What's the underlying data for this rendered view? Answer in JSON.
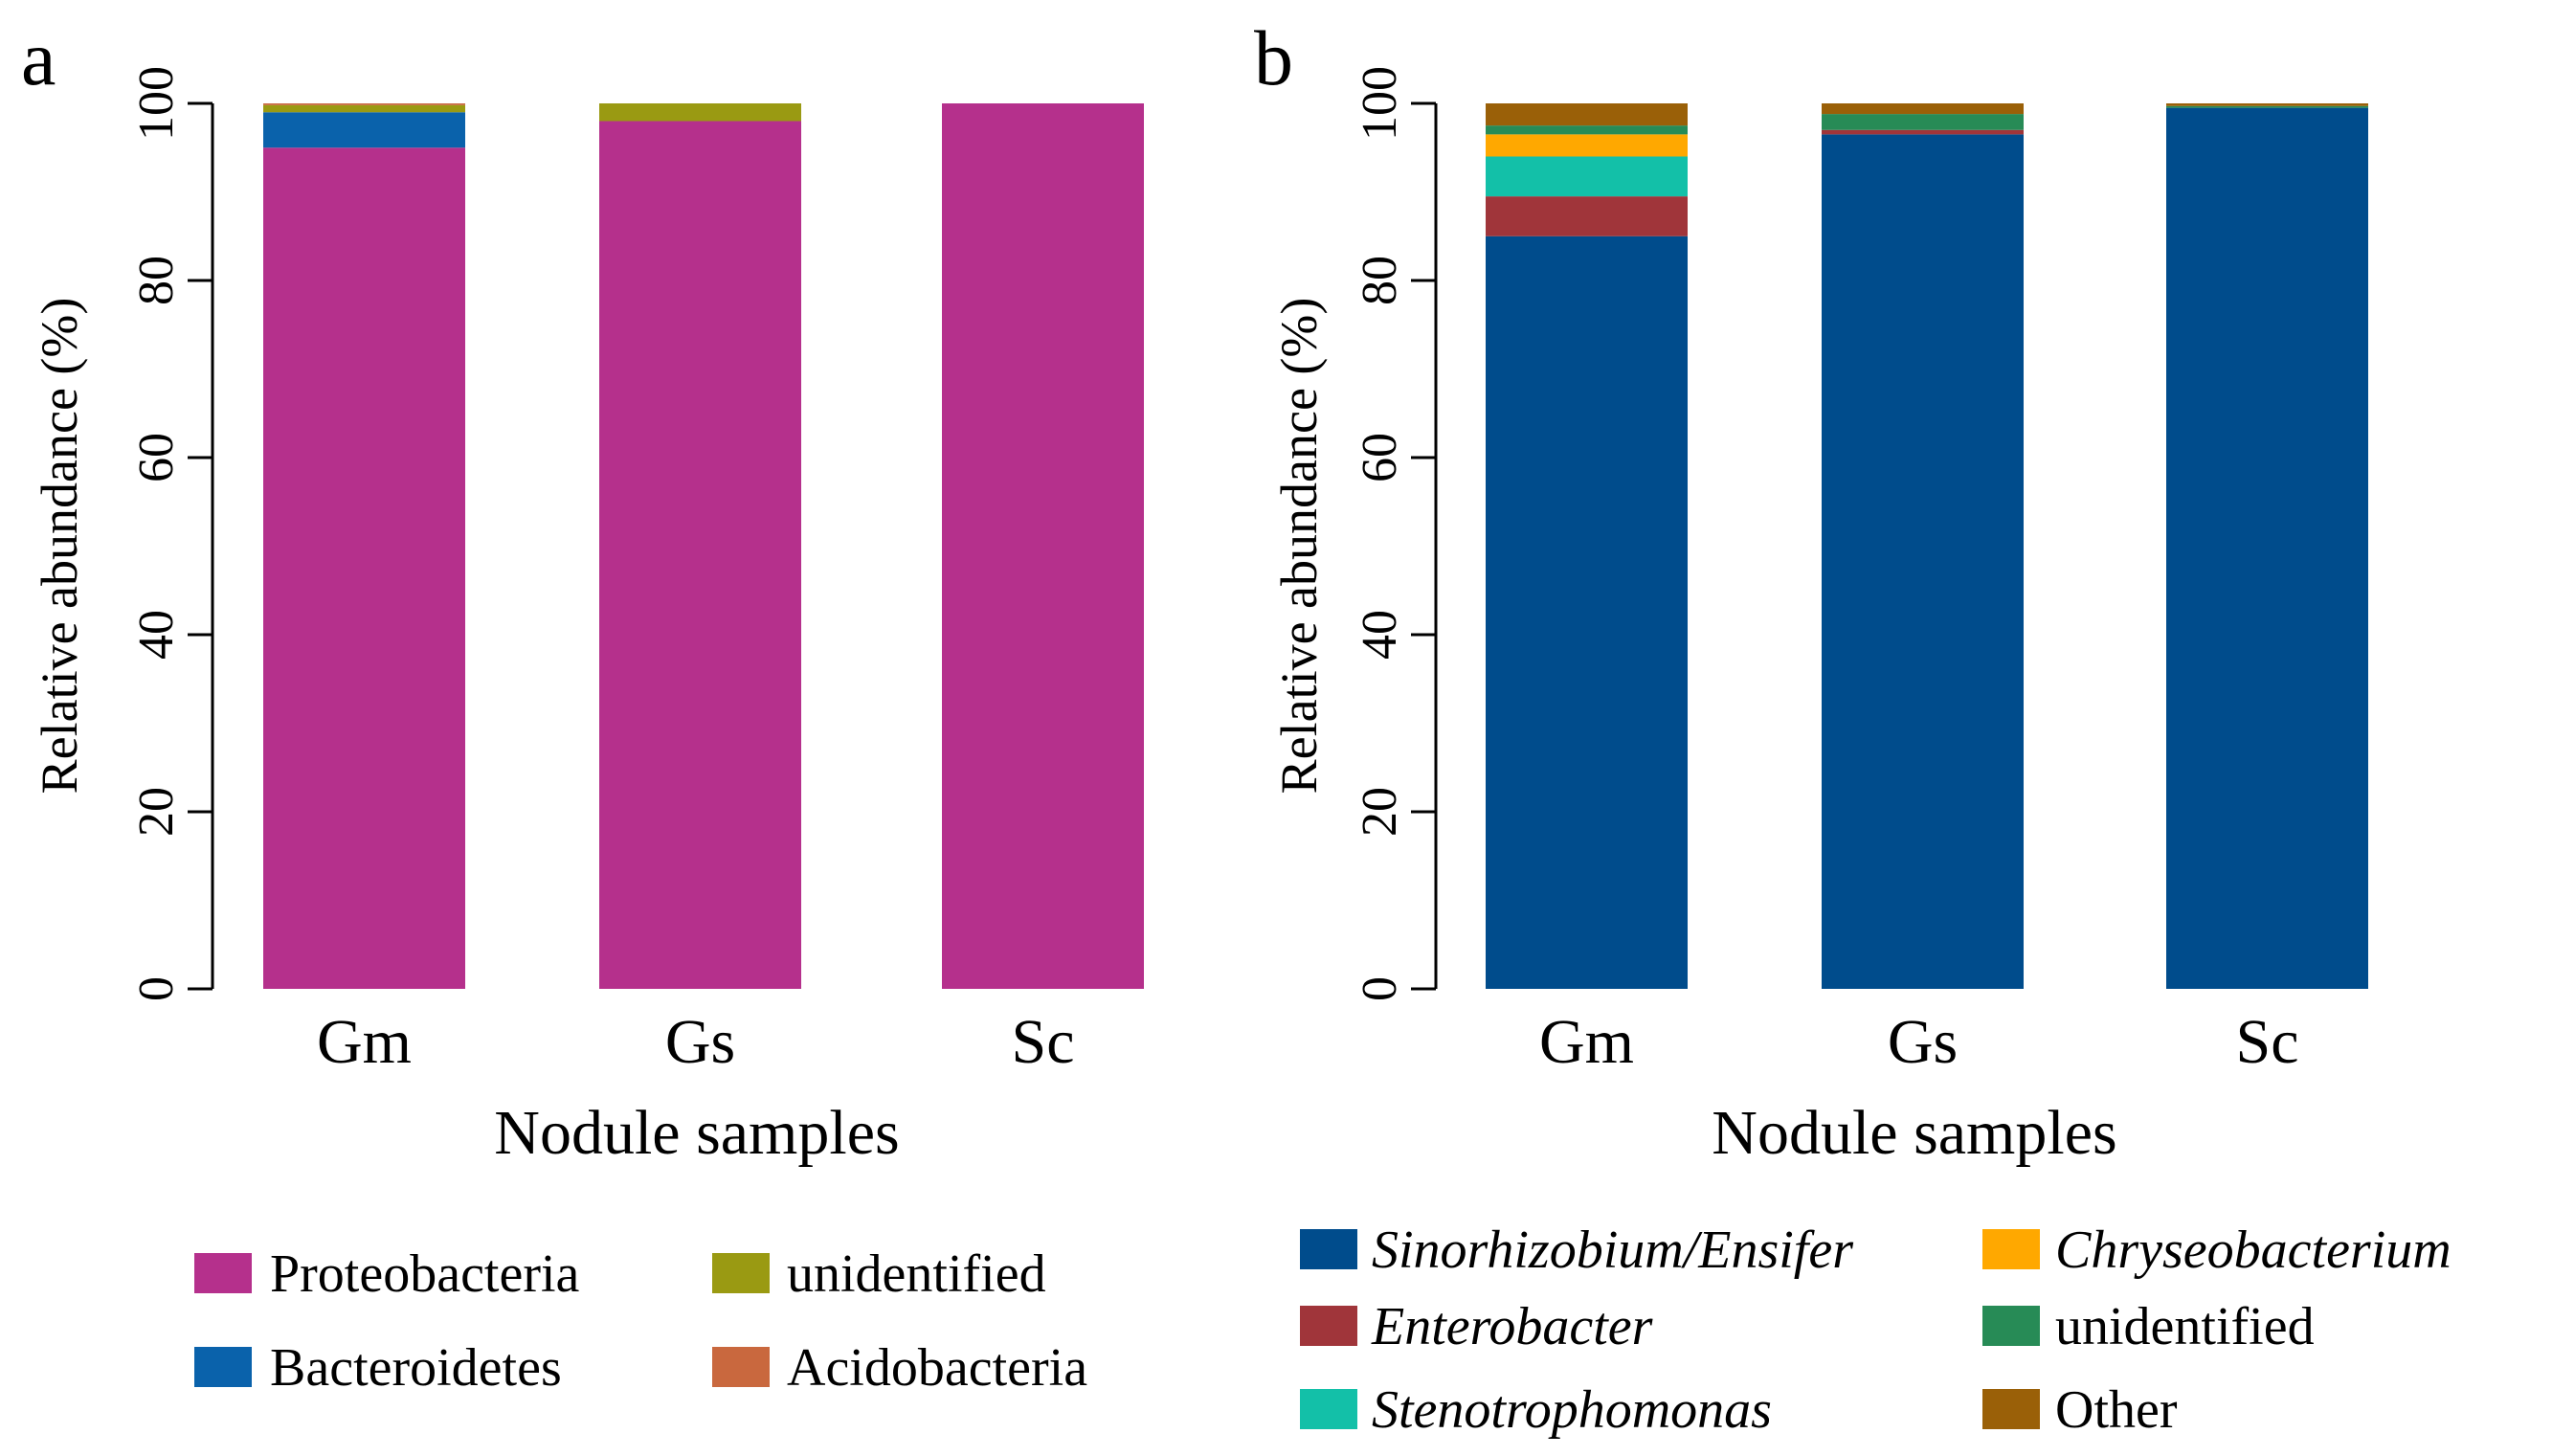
{
  "chart_data": [
    {
      "type": "bar",
      "stacked": true,
      "panel_letter": "a",
      "title": "",
      "xlabel": "Nodule samples",
      "ylabel": "Relative abundance (%)",
      "ylim": [
        0,
        100
      ],
      "yticks": [
        "0",
        "20",
        "40",
        "60",
        "80",
        "100"
      ],
      "categories": [
        "Gm",
        "Gs",
        "Sc"
      ],
      "grid": false,
      "legend_position": "bottom",
      "series": [
        {
          "name": "Proteobacteria",
          "color": "#B5308C",
          "italic": false,
          "values": [
            95.0,
            98.0,
            100.0
          ]
        },
        {
          "name": "Bacteroidetes",
          "color": "#0A62AB",
          "italic": false,
          "values": [
            4.0,
            0.0,
            0.0
          ]
        },
        {
          "name": "unidentified",
          "color": "#9A9A12",
          "italic": false,
          "values": [
            0.8,
            2.0,
            0.0
          ]
        },
        {
          "name": "Acidobacteria",
          "color": "#C9683E",
          "italic": false,
          "values": [
            0.2,
            0.0,
            0.0
          ]
        }
      ]
    },
    {
      "type": "bar",
      "stacked": true,
      "panel_letter": "b",
      "title": "",
      "xlabel": "Nodule samples",
      "ylabel": "Relative abundance (%)",
      "ylim": [
        0,
        100
      ],
      "yticks": [
        "0",
        "20",
        "40",
        "60",
        "80",
        "100"
      ],
      "categories": [
        "Gm",
        "Gs",
        "Sc"
      ],
      "grid": false,
      "legend_position": "bottom",
      "series": [
        {
          "name": "Sinorhizobium/Ensifer",
          "color": "#004C8C",
          "italic": true,
          "values": [
            85.0,
            96.5,
            99.5
          ]
        },
        {
          "name": "Enterobacter",
          "color": "#A0353A",
          "italic": true,
          "values": [
            4.5,
            0.5,
            0.0
          ]
        },
        {
          "name": "Stenotrophomonas",
          "color": "#13C0A8",
          "italic": true,
          "values": [
            4.5,
            0.0,
            0.0
          ]
        },
        {
          "name": "Chryseobacterium",
          "color": "#FFA800",
          "italic": true,
          "values": [
            2.5,
            0.0,
            0.0
          ]
        },
        {
          "name": "unidentified",
          "color": "#278B56",
          "italic": false,
          "values": [
            1.0,
            1.8,
            0.2
          ]
        },
        {
          "name": "Other",
          "color": "#9A6008",
          "italic": false,
          "values": [
            2.5,
            1.2,
            0.3
          ]
        }
      ]
    }
  ]
}
